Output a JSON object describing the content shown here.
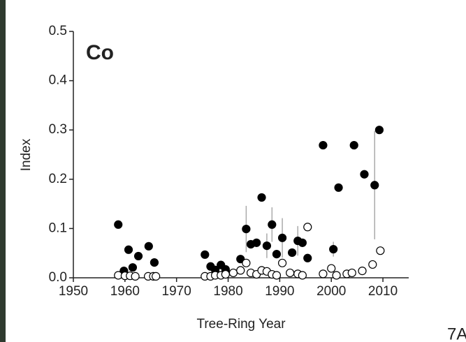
{
  "chart_data": {
    "type": "scatter",
    "annotation": "Co",
    "corner_label": "7A",
    "xlabel": "Tree-Ring Year",
    "ylabel": "Index",
    "xlim": [
      1950,
      2015
    ],
    "xticks": [
      1950,
      1960,
      1970,
      1980,
      1990,
      2000,
      2010
    ],
    "ylim": [
      0,
      0.5
    ],
    "yticks": [
      {
        "value": 0,
        "label": "0.0"
      },
      0.1,
      0.2,
      0.3,
      0.4,
      0.5
    ],
    "series": [
      {
        "color": "#000000",
        "marker": "filled",
        "x": [
          1958.7,
          1959.8,
          1960.7,
          1961.5,
          1962.6,
          1964.6,
          1965.7,
          1975.5,
          1976.6,
          1977.5,
          1978.6,
          1979.5,
          1982.4,
          1983.5,
          1984.4,
          1985.5,
          1986.5,
          1987.5,
          1988.5,
          1989.4,
          1990.5,
          1992.4,
          1993.5,
          1994.4,
          1995.4,
          1998.4,
          2000.4,
          2001.4,
          2004.4,
          2006.4,
          2008.4,
          2009.3
        ],
        "values": [
          0.108,
          0.014,
          0.057,
          0.021,
          0.044,
          0.064,
          0.031,
          0.047,
          0.023,
          0.016,
          0.026,
          0.017,
          0.038,
          0.099,
          0.068,
          0.071,
          0.163,
          0.065,
          0.108,
          0.048,
          0.081,
          0.051,
          0.075,
          0.071,
          0.04,
          0.269,
          0.058,
          0.183,
          0.269,
          0.21,
          0.188,
          0.3
        ],
        "errors": [
          null,
          null,
          null,
          null,
          null,
          null,
          null,
          null,
          null,
          null,
          null,
          null,
          null,
          0.047,
          null,
          null,
          null,
          0.025,
          0.035,
          null,
          0.04,
          null,
          0.03,
          null,
          null,
          null,
          0.015,
          null,
          null,
          null,
          0.11,
          null
        ]
      },
      {
        "color": "#000000",
        "marker": "open",
        "x": [
          1958.7,
          1960,
          1961,
          1962,
          1964.5,
          1965.5,
          1966,
          1975.5,
          1976.6,
          1977.5,
          1978.6,
          1979.5,
          1981,
          1982.4,
          1983.5,
          1984.4,
          1985.5,
          1986.5,
          1987.5,
          1988.5,
          1989.4,
          1990.5,
          1992,
          1993.5,
          1994.4,
          1995.4,
          1998.4,
          2000,
          2001,
          2003,
          2004,
          2006,
          2008,
          2009.5
        ],
        "values": [
          0.005,
          0.004,
          0.004,
          0.003,
          0.003,
          0.003,
          0.003,
          0.003,
          0.003,
          0.005,
          0.005,
          0.007,
          0.01,
          0.015,
          0.03,
          0.01,
          0.007,
          0.015,
          0.013,
          0.007,
          0.005,
          0.03,
          0.01,
          0.008,
          0.005,
          0.103,
          0.008,
          0.019,
          0.005,
          0.008,
          0.01,
          0.014,
          0.027,
          0.055
        ]
      }
    ]
  }
}
